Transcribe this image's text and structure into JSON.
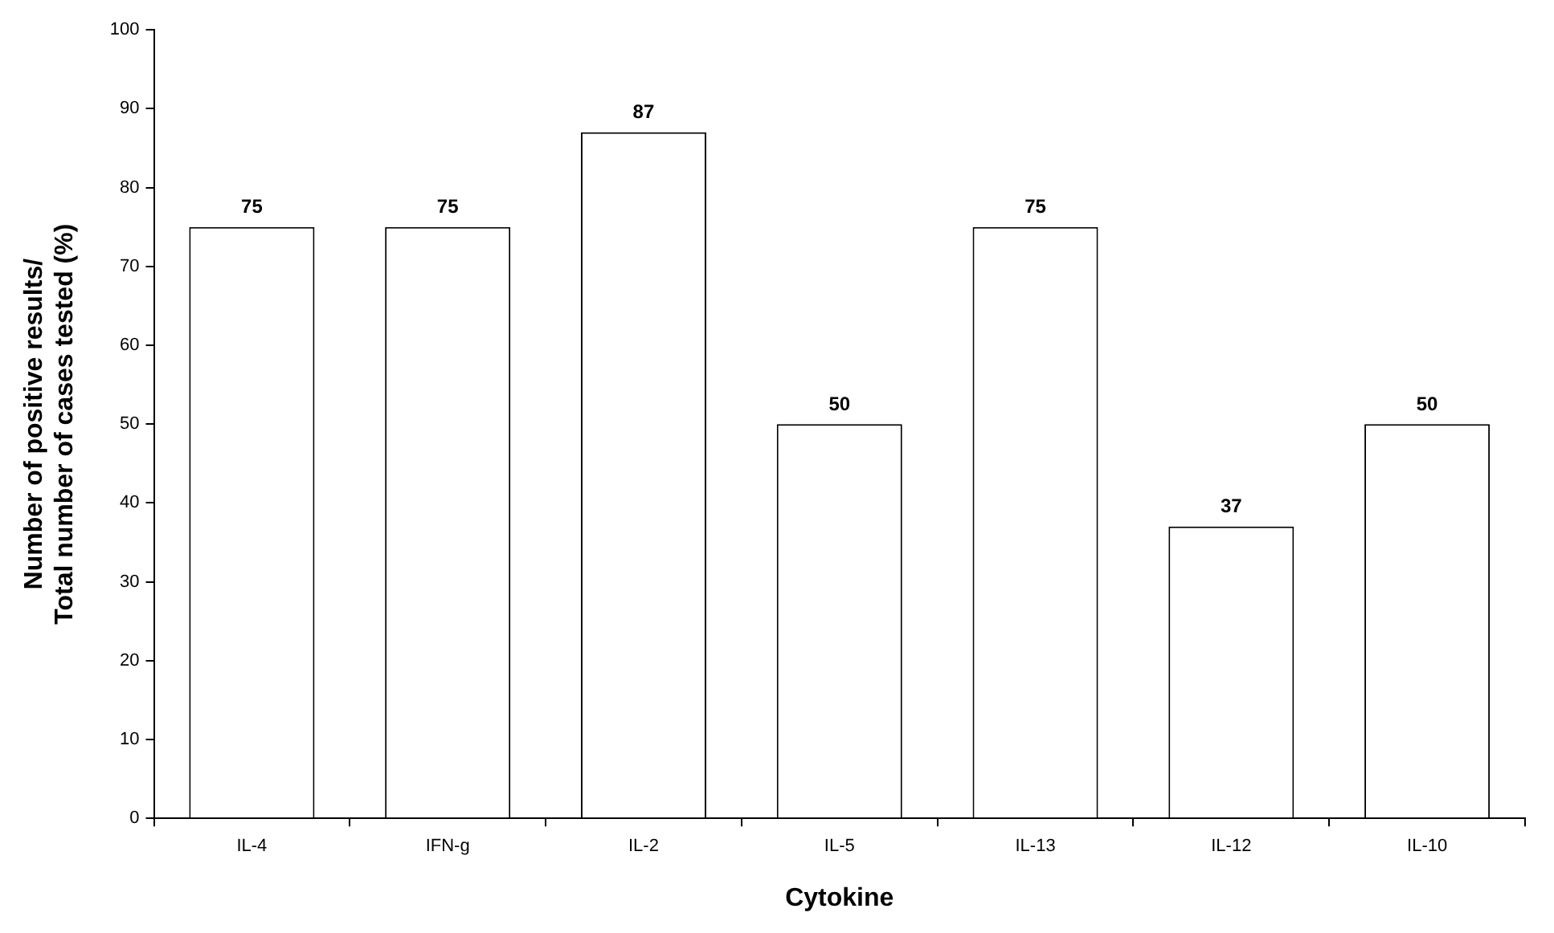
{
  "chart_data": {
    "type": "bar",
    "xlabel": "Cytokine",
    "ylabel": "Number of positive results/\nTotal number of cases tested (%)",
    "categories": [
      "IL-4",
      "IFN-g",
      "IL-2",
      "IL-5",
      "IL-13",
      "IL-12",
      "IL-10"
    ],
    "values": [
      75,
      75,
      87,
      50,
      75,
      37,
      50
    ],
    "color": "#ffffff",
    "ylim": [
      0,
      100
    ],
    "yticks": [
      0,
      10,
      20,
      30,
      40,
      50,
      60,
      70,
      80,
      90,
      100
    ],
    "grid": false,
    "data_labels": true,
    "legend": false
  }
}
